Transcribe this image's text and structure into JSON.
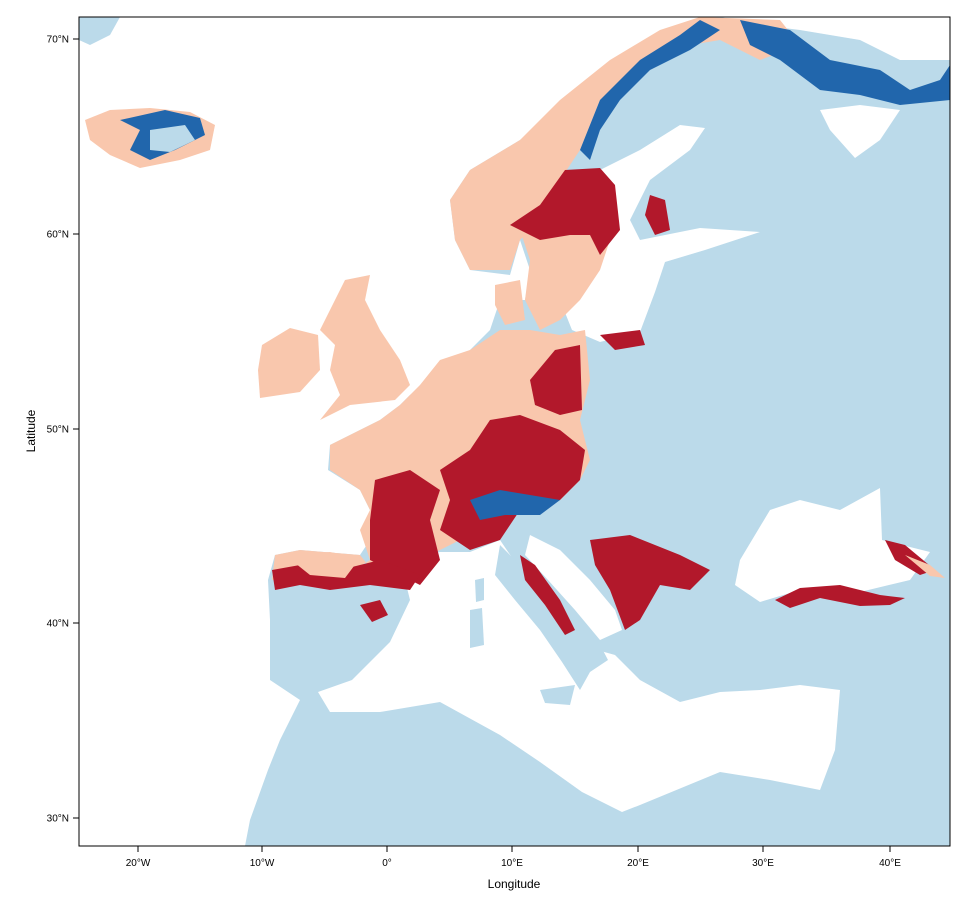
{
  "map": {
    "xlabel": "Longitude",
    "ylabel": "Latitude",
    "xticks": [
      "20°W",
      "10°W",
      "0°",
      "10°E",
      "20°E",
      "30°E",
      "40°E"
    ],
    "yticks": [
      "70°N",
      "60°N",
      "50°N",
      "40°N",
      "30°N"
    ],
    "colors": {
      "sea": "#ffffff",
      "land_background": "#bbdaea",
      "category_peach": "#f9c7ad",
      "category_dark_red": "#b2182b",
      "category_blue": "#2166ac"
    }
  }
}
